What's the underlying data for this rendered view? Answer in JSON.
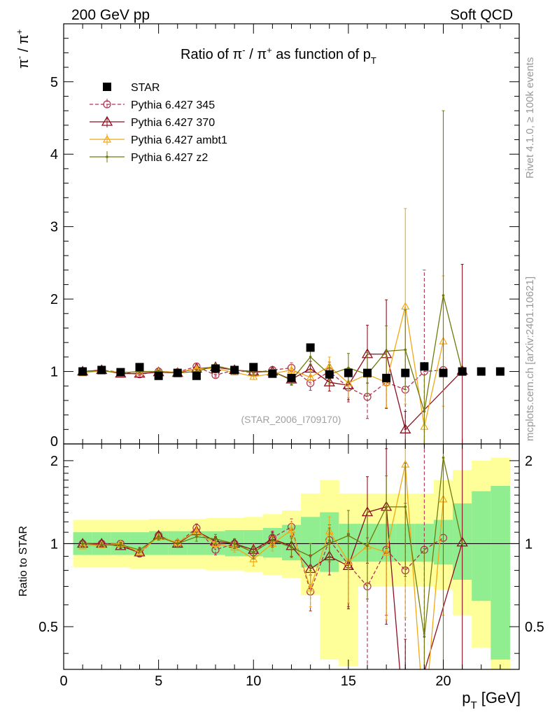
{
  "header": {
    "left": "200 GeV pp",
    "right": "Soft QCD",
    "side_rivet": "Rivet 4.1.0, ≥ 100k events",
    "side_mcplots": "mcplots.cern.ch [arXiv:2401.10621]"
  },
  "chart_data": [
    {
      "type": "line",
      "title": "Ratio of π⁻ / π⁺ as function of p_T",
      "title_parts": {
        "prefix": "Ratio of ",
        "pi": "π",
        "minus": "-",
        "slash": " / ",
        "plus": "+",
        "mid": " as function of p",
        "sub": "T"
      },
      "ylabel_parts": {
        "pi1": "π",
        "minus": "-",
        "slash": " / ",
        "pi2": "π",
        "plus": "+"
      },
      "xlim": [
        0,
        24
      ],
      "ylim": [
        0,
        5.8
      ],
      "yticks": [
        1,
        2,
        3,
        4,
        5
      ],
      "ytick_labels": [
        "1",
        "2",
        "3",
        "4",
        "5"
      ],
      "y_axis_floor_label": "0",
      "watermark": "(STAR_2006_I709170)",
      "legend": [
        {
          "key": "star",
          "label": "STAR"
        },
        {
          "key": "p345",
          "label": "Pythia 6.427 345"
        },
        {
          "key": "p370",
          "label": "Pythia 6.427 370"
        },
        {
          "key": "ambt1",
          "label": "Pythia 6.427 ambt1"
        },
        {
          "key": "z2",
          "label": "Pythia 6.427 z2"
        }
      ],
      "colors": {
        "star": "#000000",
        "p345": "#b03050",
        "p370": "#8c0f20",
        "ambt1": "#f0a818",
        "z2": "#6f7a0c"
      },
      "star": {
        "x": [
          1,
          2,
          3,
          4,
          5,
          6,
          7,
          8,
          9,
          10,
          11,
          12,
          13,
          14,
          15,
          16,
          17,
          18,
          19,
          20,
          21,
          22,
          23
        ],
        "y": [
          1.0,
          1.02,
          0.99,
          1.06,
          0.94,
          0.98,
          0.94,
          1.04,
          1.02,
          1.06,
          0.97,
          0.91,
          1.33,
          0.96,
          0.98,
          0.98,
          0.91,
          0.98,
          1.07,
          0.98,
          1.0,
          1.0,
          1.0
        ]
      },
      "series": [
        {
          "key": "p345",
          "name": "Pythia 6.427 345",
          "x": [
            1,
            2,
            3,
            4,
            5,
            6,
            7,
            8,
            9,
            10,
            11,
            12,
            13,
            14,
            15,
            16,
            17,
            18,
            19,
            20
          ],
          "y": [
            1.0,
            1.02,
            0.99,
            0.96,
            1.0,
            0.99,
            1.07,
            0.95,
            1.02,
            0.98,
            1.02,
            1.05,
            0.84,
            1.0,
            0.78,
            0.65,
            0.85,
            0.75,
            1.0,
            1.02
          ],
          "err": [
            0.02,
            0.02,
            0.02,
            0.02,
            0.02,
            0.02,
            0.03,
            0.03,
            0.03,
            0.04,
            0.05,
            0.07,
            0.1,
            0.13,
            0.2,
            0.3,
            0.35,
            0.55,
            1.4,
            0.0
          ]
        },
        {
          "key": "p370",
          "name": "Pythia 6.427 370",
          "x": [
            1,
            2,
            3,
            4,
            5,
            6,
            7,
            8,
            9,
            10,
            11,
            12,
            13,
            14,
            15,
            16,
            17,
            18,
            21
          ],
          "y": [
            1.0,
            1.02,
            0.97,
            0.97,
            0.99,
            0.98,
            1.04,
            1.06,
            1.02,
            1.0,
            1.0,
            0.89,
            1.04,
            0.85,
            0.81,
            1.24,
            1.24,
            0.2,
            1.01
          ],
          "err": [
            0.02,
            0.02,
            0.02,
            0.02,
            0.02,
            0.02,
            0.03,
            0.03,
            0.03,
            0.04,
            0.05,
            0.07,
            0.1,
            0.12,
            0.2,
            0.4,
            0.75,
            0.25,
            1.47
          ]
        },
        {
          "key": "ambt1",
          "name": "Pythia 6.427 ambt1",
          "x": [
            1,
            2,
            3,
            4,
            5,
            6,
            7,
            8,
            9,
            10,
            11,
            12,
            13,
            14,
            15,
            16,
            17,
            18,
            19,
            20
          ],
          "y": [
            0.98,
            1.01,
            0.99,
            0.99,
            1.0,
            0.99,
            1.04,
            1.04,
            0.99,
            0.93,
            0.97,
            1.02,
            0.92,
            1.07,
            0.84,
            0.96,
            0.85,
            1.9,
            0.24,
            1.42
          ],
          "err": [
            0.02,
            0.02,
            0.02,
            0.02,
            0.02,
            0.02,
            0.03,
            0.03,
            0.03,
            0.04,
            0.05,
            0.07,
            0.1,
            0.13,
            0.2,
            0.3,
            0.35,
            1.35,
            0.25,
            0.9
          ]
        },
        {
          "key": "z2",
          "name": "Pythia 6.427 z2",
          "x": [
            1,
            2,
            3,
            4,
            5,
            6,
            7,
            8,
            9,
            10,
            11,
            12,
            13,
            14,
            15,
            16,
            17,
            18,
            19,
            20,
            21
          ],
          "y": [
            1.0,
            1.01,
            0.98,
            1.0,
            1.0,
            0.98,
            1.0,
            1.08,
            1.02,
            0.99,
            1.0,
            0.88,
            1.2,
            0.96,
            1.05,
            0.96,
            1.28,
            1.3,
            0.45,
            2.05,
            1.0
          ],
          "err": [
            0.02,
            0.02,
            0.02,
            0.02,
            0.02,
            0.02,
            0.03,
            0.03,
            0.03,
            0.04,
            0.05,
            0.07,
            0.1,
            0.13,
            0.2,
            0.3,
            0.35,
            0.55,
            0.5,
            2.55,
            0.0
          ]
        }
      ]
    },
    {
      "type": "line",
      "title": "",
      "ylabel": "Ratio to STAR",
      "xlabel": "p_T [GeV]",
      "xlabel_parts": {
        "p": "p",
        "sub": "T",
        "unit": " [GeV]"
      },
      "xlim": [
        0,
        24
      ],
      "ylim": [
        0.35,
        2.3
      ],
      "log_y": true,
      "yticks": [
        0.5,
        1,
        2
      ],
      "ytick_labels": [
        "0.5",
        "1",
        "2"
      ],
      "xticks": [
        0,
        5,
        10,
        15,
        20
      ],
      "xtick_labels": [
        "0",
        "5",
        "10",
        "15",
        "20"
      ],
      "bands": {
        "edges": [
          0.5,
          1.5,
          2.5,
          3.5,
          4.5,
          5.5,
          6.5,
          7.5,
          8.5,
          9.5,
          10.5,
          11.5,
          12.5,
          13.5,
          14.5,
          15.5,
          16.5,
          17.5,
          18.5,
          19.5,
          20.5,
          21.5,
          22.5,
          23.5
        ],
        "inner_lo": [
          0.91,
          0.91,
          0.91,
          0.91,
          0.91,
          0.91,
          0.91,
          0.91,
          0.9,
          0.9,
          0.89,
          0.87,
          0.82,
          0.79,
          0.86,
          0.86,
          0.86,
          0.86,
          0.86,
          0.84,
          0.74,
          0.62,
          0.38
        ],
        "inner_hi": [
          1.1,
          1.1,
          1.1,
          1.1,
          1.11,
          1.11,
          1.11,
          1.11,
          1.12,
          1.12,
          1.14,
          1.17,
          1.25,
          1.3,
          1.18,
          1.18,
          1.18,
          1.18,
          1.18,
          1.22,
          1.4,
          1.55,
          1.62
        ],
        "outer_lo": [
          0.82,
          0.82,
          0.82,
          0.81,
          0.81,
          0.81,
          0.81,
          0.8,
          0.8,
          0.79,
          0.77,
          0.75,
          0.65,
          0.38,
          0.36,
          0.7,
          0.7,
          0.7,
          0.7,
          0.68,
          0.55,
          0.42,
          0.2
        ],
        "outer_hi": [
          1.22,
          1.22,
          1.22,
          1.22,
          1.23,
          1.23,
          1.23,
          1.24,
          1.24,
          1.25,
          1.28,
          1.32,
          1.52,
          1.7,
          1.52,
          1.52,
          1.52,
          1.52,
          1.52,
          1.7,
          1.85,
          2.0,
          2.05
        ]
      },
      "colors": {
        "band_inner": "#90ee90",
        "band_outer": "#ffff99",
        "reference_line": "#000000"
      },
      "series": [
        {
          "key": "p345",
          "name": "Pythia 6.427 345",
          "x": [
            1,
            2,
            3,
            4,
            5,
            6,
            7,
            8,
            9,
            10,
            11,
            12,
            13,
            14,
            15,
            16,
            17,
            18,
            19,
            20
          ],
          "y": [
            1.0,
            1.0,
            1.0,
            0.92,
            1.07,
            1.0,
            1.14,
            0.95,
            1.0,
            0.93,
            1.05,
            1.15,
            0.67,
            1.03,
            0.84,
            0.7,
            0.95,
            0.8,
            0.95,
            1.05
          ],
          "err": [
            0.02,
            0.02,
            0.02,
            0.02,
            0.03,
            0.03,
            0.04,
            0.04,
            0.04,
            0.05,
            0.06,
            0.08,
            0.1,
            0.14,
            0.25,
            0.35,
            0.4,
            0.6,
            1.4,
            0.0
          ]
        },
        {
          "key": "p370",
          "name": "Pythia 6.427 370",
          "x": [
            1,
            2,
            3,
            4,
            5,
            6,
            7,
            8,
            9,
            10,
            11,
            12,
            13,
            14,
            15,
            16,
            17,
            18,
            21
          ],
          "y": [
            1.0,
            1.0,
            0.98,
            0.93,
            1.07,
            1.0,
            1.11,
            1.02,
            1.0,
            0.95,
            1.04,
            0.98,
            0.81,
            0.9,
            0.83,
            1.3,
            1.36,
            0.2,
            1.01
          ],
          "err": [
            0.02,
            0.02,
            0.02,
            0.02,
            0.03,
            0.03,
            0.04,
            0.04,
            0.04,
            0.05,
            0.06,
            0.08,
            0.1,
            0.13,
            0.25,
            0.45,
            0.85,
            0.25,
            1.47
          ]
        },
        {
          "key": "ambt1",
          "name": "Pythia 6.427 ambt1",
          "x": [
            1,
            2,
            3,
            4,
            5,
            6,
            7,
            8,
            9,
            10,
            11,
            12,
            13,
            14,
            15,
            16,
            17,
            18,
            19,
            20
          ],
          "y": [
            0.98,
            0.99,
            1.0,
            0.93,
            1.06,
            1.01,
            1.11,
            1.0,
            0.97,
            0.88,
            1.0,
            1.12,
            0.69,
            1.11,
            0.86,
            0.98,
            0.93,
            1.94,
            0.22,
            1.45
          ],
          "err": [
            0.02,
            0.02,
            0.02,
            0.02,
            0.03,
            0.03,
            0.04,
            0.04,
            0.04,
            0.05,
            0.06,
            0.08,
            0.1,
            0.14,
            0.25,
            0.35,
            0.4,
            1.4,
            0.25,
            0.9
          ]
        },
        {
          "key": "z2",
          "name": "Pythia 6.427 z2",
          "x": [
            1,
            2,
            3,
            4,
            5,
            6,
            7,
            8,
            9,
            10,
            11,
            12,
            13,
            14,
            15,
            16,
            17,
            18,
            19,
            20,
            21
          ],
          "y": [
            1.0,
            0.99,
            0.99,
            0.95,
            1.06,
            1.0,
            1.06,
            1.04,
            1.0,
            0.93,
            1.03,
            0.97,
            0.9,
            1.0,
            1.07,
            0.98,
            1.36,
            1.36,
            0.46,
            2.05,
            1.0
          ],
          "err": [
            0.02,
            0.02,
            0.02,
            0.02,
            0.03,
            0.03,
            0.04,
            0.04,
            0.04,
            0.05,
            0.06,
            0.08,
            0.1,
            0.14,
            0.25,
            0.35,
            0.4,
            0.6,
            0.5,
            2.5,
            0.0
          ]
        }
      ]
    }
  ]
}
